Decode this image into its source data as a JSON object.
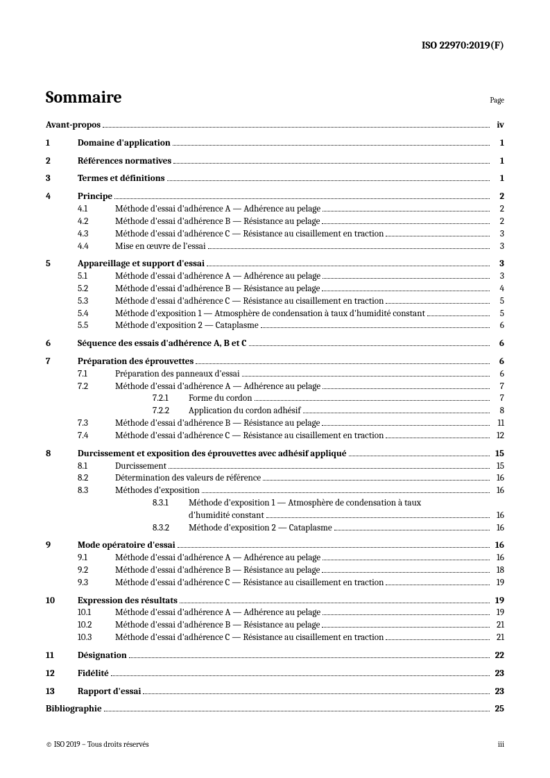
{
  "docId": "ISO 22970:2019(F)",
  "tocTitle": "Sommaire",
  "pageLabel": "Page",
  "footer": {
    "left": "© ISO 2019 – Tous droits réservés",
    "right": "iii"
  },
  "entries": [
    {
      "type": "top",
      "num": "",
      "title": "Avant-propos",
      "page": "iv",
      "bold": true,
      "gap": false
    },
    {
      "type": "top",
      "num": "1",
      "title": "Domaine d'application",
      "page": "1",
      "bold": true,
      "gap": true
    },
    {
      "type": "top",
      "num": "2",
      "title": "Références normatives",
      "page": "1",
      "bold": true,
      "gap": true
    },
    {
      "type": "top",
      "num": "3",
      "title": "Termes et définitions",
      "page": "1",
      "bold": true,
      "gap": true
    },
    {
      "type": "top",
      "num": "4",
      "title": "Principe",
      "page": "2",
      "bold": true,
      "gap": true
    },
    {
      "type": "sub",
      "num": "4.1",
      "title": "Méthode d'essai d'adhérence A — Adhérence au pelage",
      "page": "2"
    },
    {
      "type": "sub",
      "num": "4.2",
      "title": "Méthode d'essai d'adhérence B — Résistance au pelage",
      "page": "2"
    },
    {
      "type": "sub",
      "num": "4.3",
      "title": "Méthode d'essai d'adhérence C — Résistance au cisaillement en traction",
      "page": "3"
    },
    {
      "type": "sub",
      "num": "4.4",
      "title": "Mise en œuvre de l'essai",
      "page": "3"
    },
    {
      "type": "top",
      "num": "5",
      "title": "Appareillage et support d'essai",
      "page": "3",
      "bold": true,
      "gap": true
    },
    {
      "type": "sub",
      "num": "5.1",
      "title": "Méthode d'essai d'adhérence A — Adhérence au pelage",
      "page": "3"
    },
    {
      "type": "sub",
      "num": "5.2",
      "title": "Méthode d'essai d'adhérence B — Résistance au pelage",
      "page": "4"
    },
    {
      "type": "sub",
      "num": "5.3",
      "title": "Méthode d'essai d'adhérence C — Résistance au cisaillement en traction",
      "page": "5"
    },
    {
      "type": "sub",
      "num": "5.4",
      "title": "Méthode d'exposition 1 — Atmosphère de condensation à taux d'humidité constant",
      "page": "5"
    },
    {
      "type": "sub",
      "num": "5.5",
      "title": "Méthode d'exposition 2 — Cataplasme",
      "page": "6"
    },
    {
      "type": "top",
      "num": "6",
      "title": "Séquence des essais d'adhérence A, B et C",
      "page": "6",
      "bold": true,
      "gap": true
    },
    {
      "type": "top",
      "num": "7",
      "title": "Préparation des éprouvettes",
      "page": "6",
      "bold": true,
      "gap": true
    },
    {
      "type": "sub",
      "num": "7.1",
      "title": "Préparation des panneaux d'essai",
      "page": "6"
    },
    {
      "type": "sub",
      "num": "7.2",
      "title": "Méthode d'essai d'adhérence A — Adhérence au pelage",
      "page": "7"
    },
    {
      "type": "subsub",
      "num": "7.2.1",
      "title": "Forme du cordon",
      "page": "7"
    },
    {
      "type": "subsub",
      "num": "7.2.2",
      "title": "Application du cordon adhésif",
      "page": "8"
    },
    {
      "type": "sub",
      "num": "7.3",
      "title": "Méthode d'essai d'adhérence B — Résistance au pelage",
      "page": "11"
    },
    {
      "type": "sub",
      "num": "7.4",
      "title": "Méthode d'essai d'adhérence C — Résistance au cisaillement en traction",
      "page": "12"
    },
    {
      "type": "top",
      "num": "8",
      "title": "Durcissement et exposition des éprouvettes avec adhésif appliqué",
      "page": "15",
      "bold": true,
      "gap": true
    },
    {
      "type": "sub",
      "num": "8.1",
      "title": "Durcissement",
      "page": "15"
    },
    {
      "type": "sub",
      "num": "8.2",
      "title": "Détermination des valeurs de référence",
      "page": "16"
    },
    {
      "type": "sub",
      "num": "8.3",
      "title": "Méthodes d'exposition",
      "page": "16"
    },
    {
      "type": "subsub-wrap",
      "num": "8.3.1",
      "title1": "Méthode d'exposition 1 — Atmosphère de condensation à taux",
      "title2": "d'humidité constant",
      "page": "16"
    },
    {
      "type": "subsub",
      "num": "8.3.2",
      "title": "Méthode d'exposition 2 — Cataplasme",
      "page": "16"
    },
    {
      "type": "top",
      "num": "9",
      "title": "Mode opératoire d'essai",
      "page": "16",
      "bold": true,
      "gap": true
    },
    {
      "type": "sub",
      "num": "9.1",
      "title": "Méthode d'essai d'adhérence A — Adhérence au pelage",
      "page": "16"
    },
    {
      "type": "sub",
      "num": "9.2",
      "title": "Méthode d'essai d'adhérence B — Résistance au pelage",
      "page": "18"
    },
    {
      "type": "sub",
      "num": "9.3",
      "title": "Méthode d'essai d'adhérence C — Résistance au cisaillement en traction",
      "page": "19"
    },
    {
      "type": "top",
      "num": "10",
      "title": "Expression des résultats",
      "page": "19",
      "bold": true,
      "gap": true
    },
    {
      "type": "sub",
      "num": "10.1",
      "title": "Méthode d'essai d'adhérence A — Adhérence au pelage",
      "page": "19"
    },
    {
      "type": "sub",
      "num": "10.2",
      "title": "Méthode d'essai d'adhérence B — Résistance au pelage",
      "page": "21"
    },
    {
      "type": "sub",
      "num": "10.3",
      "title": "Méthode d'essai d'adhérence C — Résistance au cisaillement en traction",
      "page": "21"
    },
    {
      "type": "top",
      "num": "11",
      "title": "Désignation",
      "page": "22",
      "bold": true,
      "gap": true
    },
    {
      "type": "top",
      "num": "12",
      "title": "Fidélité",
      "page": "23",
      "bold": true,
      "gap": true
    },
    {
      "type": "top",
      "num": "13",
      "title": "Rapport d'essai",
      "page": "23",
      "bold": true,
      "gap": true
    },
    {
      "type": "top",
      "num": "",
      "title": "Bibliographie",
      "page": "25",
      "bold": true,
      "gap": true
    }
  ]
}
